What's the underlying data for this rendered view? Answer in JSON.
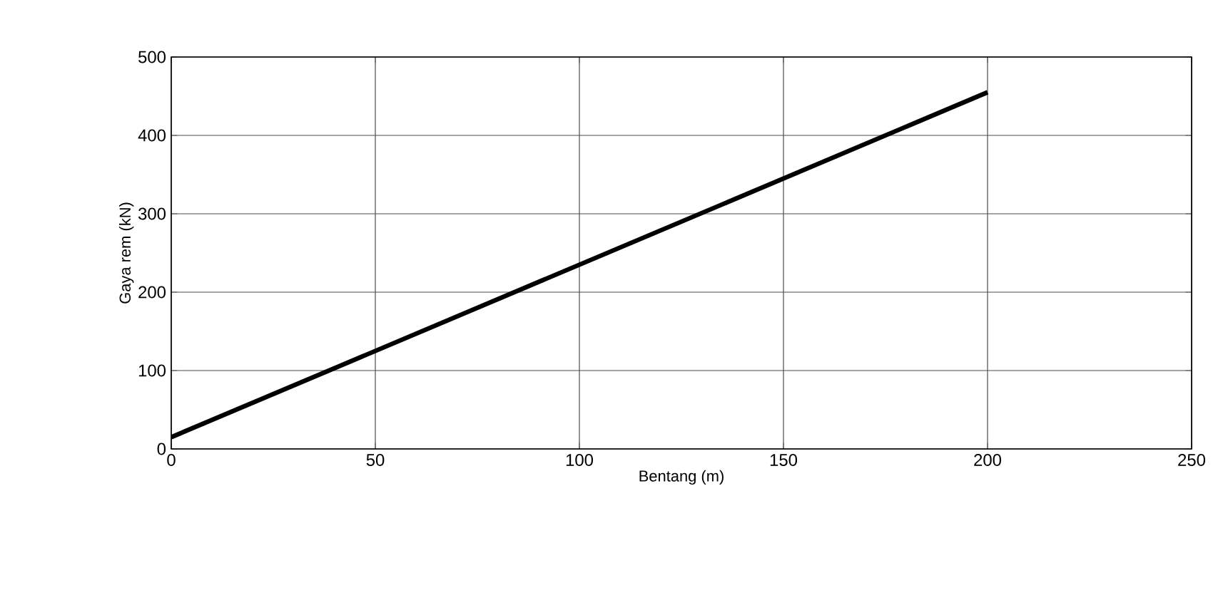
{
  "chart_data": {
    "type": "line",
    "xlabel": "Bentang (m)",
    "ylabel": "Gaya rem (kN)",
    "x": [
      0,
      200
    ],
    "series": [
      {
        "color": "#000000",
        "values": [
          15,
          455
        ]
      }
    ],
    "xlim": [
      0,
      250
    ],
    "ylim": [
      0,
      500
    ],
    "xticks": [
      0,
      50,
      100,
      150,
      200,
      250
    ],
    "yticks": [
      0,
      100,
      200,
      300,
      400,
      500
    ],
    "grid": true,
    "marker": "none",
    "line_style": "solid"
  }
}
